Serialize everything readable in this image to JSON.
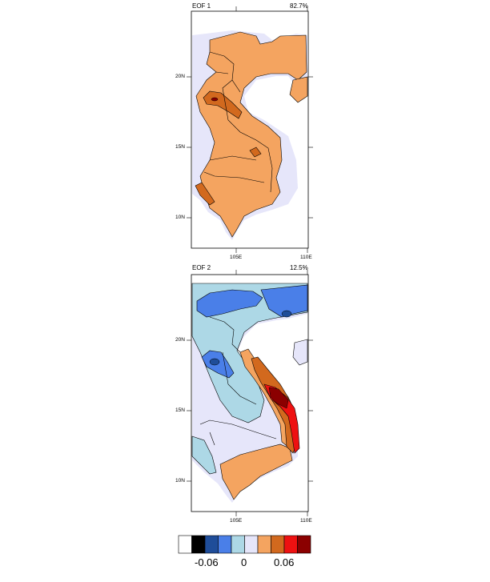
{
  "panels": [
    {
      "title": "EOF 1",
      "variance": "82.7%",
      "lat_labels": [
        "20N",
        "15N",
        "10N"
      ],
      "lon_labels": [
        "105E",
        "110E"
      ]
    },
    {
      "title": "EOF 2",
      "variance": "12.5%",
      "lat_labels": [
        "20N",
        "15N",
        "10N"
      ],
      "lon_labels": [
        "105E",
        "110E"
      ]
    }
  ],
  "colorbar": {
    "colors": [
      "#ffffff",
      "#000000",
      "#1f4d99",
      "#4a7fe8",
      "#add8e6",
      "#e6e6fa",
      "#f4a460",
      "#d2691e",
      "#ee1111",
      "#8b0000"
    ],
    "labels": [
      "-0.06",
      "0",
      "0.06"
    ]
  },
  "colors": {
    "eof1_background": "#e6e6fa",
    "eof1_main": "#f4a460",
    "eof1_core": "#d2691e",
    "eof2_background": "#e6e6fa",
    "eof2_lightblue": "#add8e6",
    "eof2_blue": "#4a7fe8",
    "eof2_darkblue": "#1f4d99",
    "eof2_orange": "#f4a460",
    "eof2_darkorange": "#d2691e",
    "eof2_red": "#ee1111",
    "eof2_darkred": "#8b0000"
  }
}
